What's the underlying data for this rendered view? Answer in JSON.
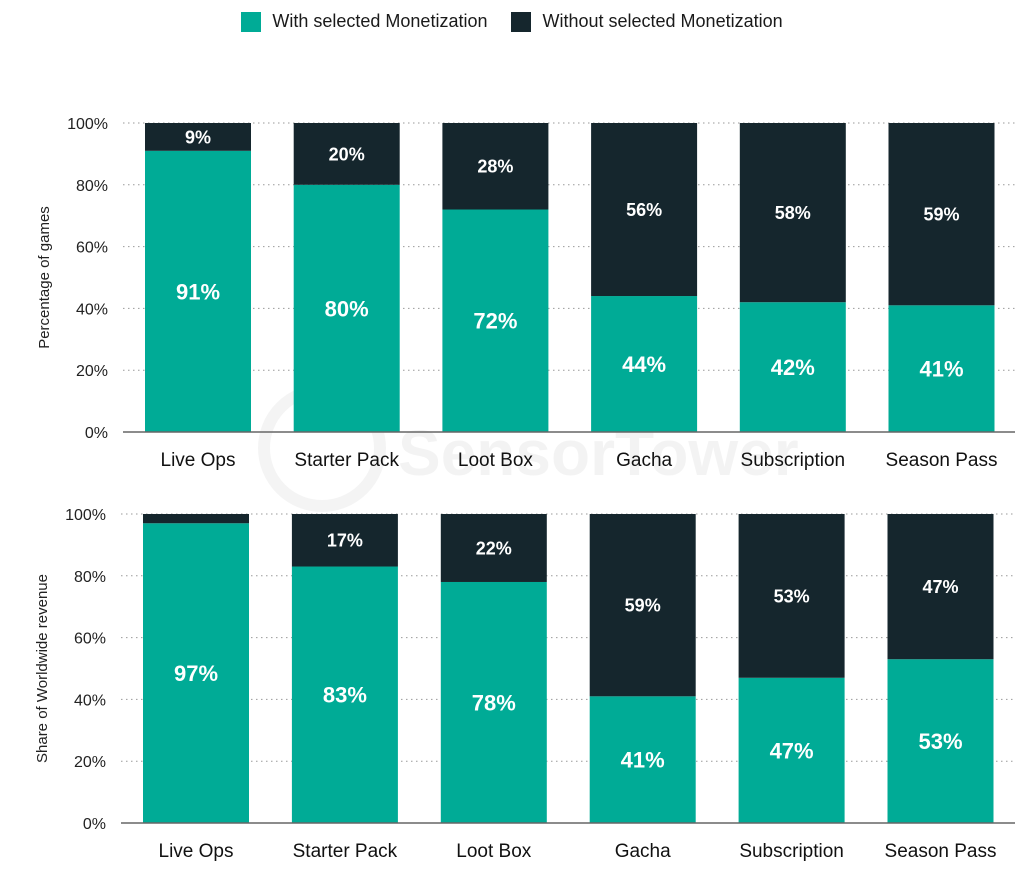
{
  "legend": [
    {
      "label": "With selected Monetization",
      "color": "#00ab96"
    },
    {
      "label": "Without selected Monetization",
      "color": "#15262d"
    }
  ],
  "watermark": "SensorTower",
  "chart_data": [
    {
      "type": "bar",
      "stacked": true,
      "title": "",
      "xlabel": "",
      "ylabel": "Percentage of games",
      "ylim": [
        0,
        100
      ],
      "yticks": [
        "0%",
        "20%",
        "40%",
        "60%",
        "80%",
        "100%"
      ],
      "grid": true,
      "legend_position": "top-center",
      "categories": [
        "Live Ops",
        "Starter Pack",
        "Loot Box",
        "Gacha",
        "Subscription",
        "Season Pass"
      ],
      "series": [
        {
          "name": "With selected Monetization",
          "values": [
            91,
            80,
            72,
            44,
            42,
            41
          ],
          "labels": [
            "91%",
            "80%",
            "72%",
            "44%",
            "42%",
            "41%"
          ]
        },
        {
          "name": "Without selected Monetization",
          "values": [
            9,
            20,
            28,
            56,
            58,
            59
          ],
          "labels": [
            "9%",
            "20%",
            "28%",
            "56%",
            "58%",
            "59%"
          ]
        }
      ]
    },
    {
      "type": "bar",
      "stacked": true,
      "title": "",
      "xlabel": "",
      "ylabel": "Share of Worldwide revenue",
      "ylim": [
        0,
        100
      ],
      "yticks": [
        "0%",
        "20%",
        "40%",
        "60%",
        "80%",
        "100%"
      ],
      "grid": true,
      "legend_position": "top-center",
      "categories": [
        "Live Ops",
        "Starter Pack",
        "Loot Box",
        "Gacha",
        "Subscription",
        "Season Pass"
      ],
      "series": [
        {
          "name": "With selected Monetization",
          "values": [
            97,
            83,
            78,
            41,
            47,
            53
          ],
          "labels": [
            "97%",
            "83%",
            "78%",
            "41%",
            "47%",
            "53%"
          ]
        },
        {
          "name": "Without selected Monetization",
          "values": [
            3,
            17,
            22,
            59,
            53,
            47
          ],
          "labels": [
            "",
            "17%",
            "22%",
            "59%",
            "53%",
            "47%"
          ]
        }
      ]
    }
  ]
}
